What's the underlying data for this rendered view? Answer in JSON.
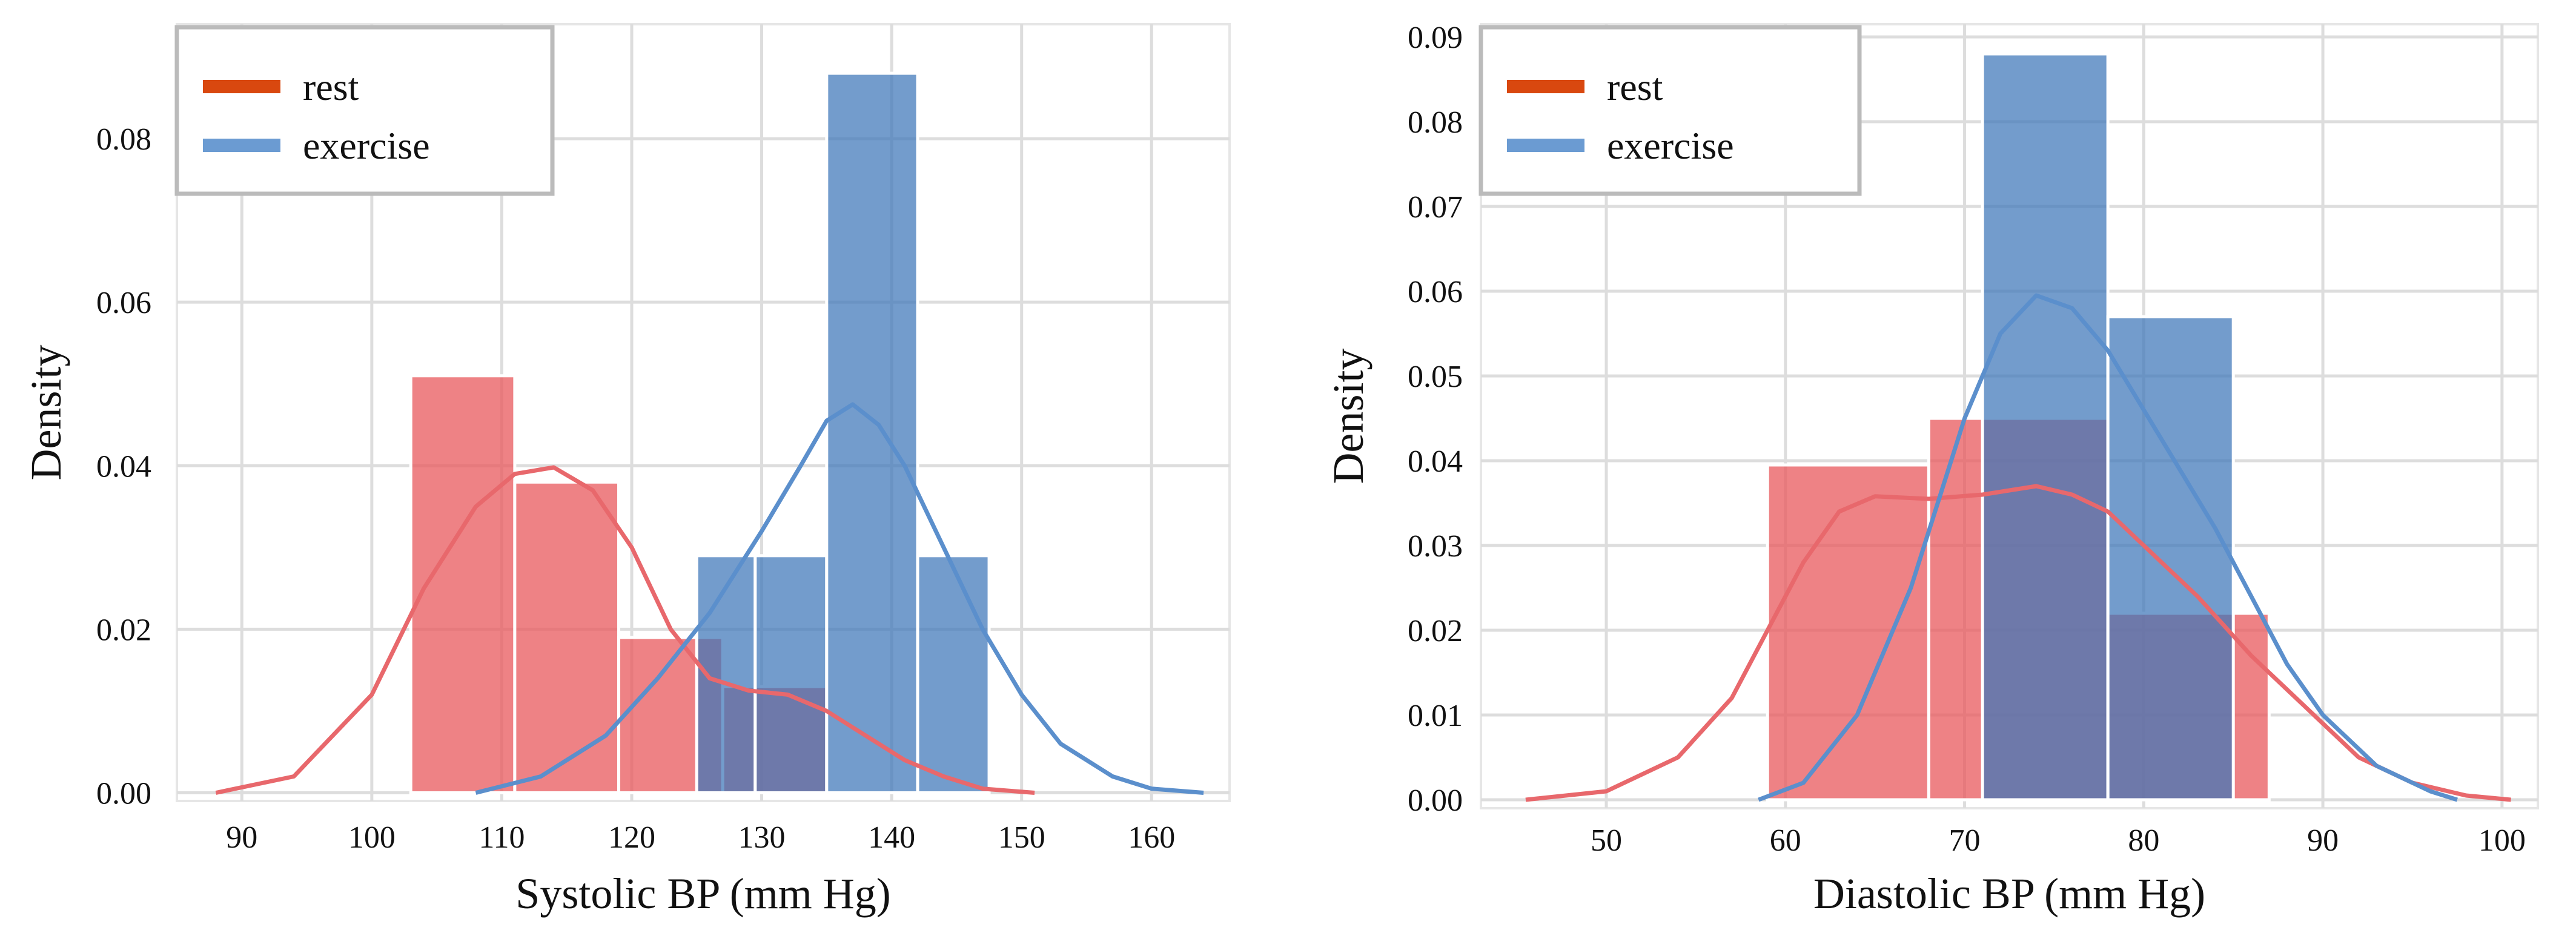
{
  "colors": {
    "rest_bar": "#e8585c",
    "rest_line": "#e8686c",
    "rest_swatch": "#d9480f",
    "exercise_bar": "#3d76b8",
    "exercise_line": "#5b8fcc",
    "exercise_swatch": "#6b9bd2",
    "grid": "#dddddd",
    "frame": "#e6e6e6",
    "legend_border": "#bbbbbb"
  },
  "chart_data": [
    {
      "type": "bar",
      "subtype": "histogram-with-kde",
      "title": "",
      "xlabel": "Systolic BP (mm Hg)",
      "ylabel": "Density",
      "xlim": [
        85,
        166
      ],
      "ylim": [
        -0.001,
        0.094
      ],
      "xticks": [
        90,
        100,
        110,
        120,
        130,
        140,
        150,
        160
      ],
      "yticks": [
        0.0,
        0.02,
        0.04,
        0.06,
        0.08
      ],
      "ytick_labels": [
        "0.00",
        "0.02",
        "0.04",
        "0.06",
        "0.08"
      ],
      "legend": {
        "position": "top-left",
        "entries": [
          "rest",
          "exercise"
        ]
      },
      "series": [
        {
          "name": "rest",
          "bins": [
            {
              "x0": 103,
              "x1": 111,
              "density": 0.051
            },
            {
              "x0": 111,
              "x1": 119,
              "density": 0.038
            },
            {
              "x0": 119,
              "x1": 127,
              "density": 0.019
            },
            {
              "x0": 127,
              "x1": 135,
              "density": 0.013
            }
          ],
          "kde": [
            [
              88,
              0.0
            ],
            [
              94,
              0.002
            ],
            [
              100,
              0.012
            ],
            [
              104,
              0.025
            ],
            [
              108,
              0.035
            ],
            [
              111,
              0.039
            ],
            [
              114,
              0.0398
            ],
            [
              117,
              0.037
            ],
            [
              120,
              0.03
            ],
            [
              123,
              0.02
            ],
            [
              126,
              0.014
            ],
            [
              129,
              0.0125
            ],
            [
              132,
              0.012
            ],
            [
              135,
              0.01
            ],
            [
              138,
              0.007
            ],
            [
              141,
              0.004
            ],
            [
              144,
              0.002
            ],
            [
              147,
              0.0005
            ],
            [
              151,
              0.0
            ]
          ]
        },
        {
          "name": "exercise",
          "bins": [
            {
              "x0": 125,
              "x1": 129.5,
              "density": 0.029
            },
            {
              "x0": 129.5,
              "x1": 135,
              "density": 0.029
            },
            {
              "x0": 135,
              "x1": 142,
              "density": 0.088
            },
            {
              "x0": 142,
              "x1": 147.5,
              "density": 0.029
            }
          ],
          "kde": [
            [
              108,
              0.0
            ],
            [
              113,
              0.002
            ],
            [
              118,
              0.007
            ],
            [
              122,
              0.014
            ],
            [
              126,
              0.022
            ],
            [
              130,
              0.032
            ],
            [
              133,
              0.04
            ],
            [
              135,
              0.0455
            ],
            [
              137,
              0.0475
            ],
            [
              139,
              0.045
            ],
            [
              141,
              0.04
            ],
            [
              144,
              0.03
            ],
            [
              147,
              0.02
            ],
            [
              150,
              0.012
            ],
            [
              153,
              0.006
            ],
            [
              157,
              0.002
            ],
            [
              160,
              0.0005
            ],
            [
              164,
              0.0
            ]
          ]
        }
      ]
    },
    {
      "type": "bar",
      "subtype": "histogram-with-kde",
      "title": "",
      "xlabel": "Diastolic BP (mm Hg)",
      "ylabel": "Density",
      "xlim": [
        43,
        102
      ],
      "ylim": [
        -0.001,
        0.0915
      ],
      "xticks": [
        50,
        60,
        70,
        80,
        90,
        100
      ],
      "yticks": [
        0.0,
        0.01,
        0.02,
        0.03,
        0.04,
        0.05,
        0.06,
        0.07,
        0.08,
        0.09
      ],
      "ytick_labels": [
        "0.00",
        "0.01",
        "0.02",
        "0.03",
        "0.04",
        "0.05",
        "0.06",
        "0.07",
        "0.08",
        "0.09"
      ],
      "legend": {
        "position": "top-left",
        "entries": [
          "rest",
          "exercise"
        ]
      },
      "series": [
        {
          "name": "rest",
          "bins": [
            {
              "x0": 59,
              "x1": 68,
              "density": 0.0395
            },
            {
              "x0": 68,
              "x1": 78,
              "density": 0.045
            },
            {
              "x0": 78,
              "x1": 87,
              "density": 0.022
            }
          ],
          "kde": [
            [
              45.5,
              0.0
            ],
            [
              50,
              0.001
            ],
            [
              54,
              0.005
            ],
            [
              57,
              0.012
            ],
            [
              59,
              0.02
            ],
            [
              61,
              0.028
            ],
            [
              63,
              0.034
            ],
            [
              65,
              0.0358
            ],
            [
              68,
              0.0355
            ],
            [
              71,
              0.036
            ],
            [
              74,
              0.037
            ],
            [
              76,
              0.036
            ],
            [
              78,
              0.034
            ],
            [
              80,
              0.03
            ],
            [
              83,
              0.024
            ],
            [
              86,
              0.017
            ],
            [
              89,
              0.011
            ],
            [
              92,
              0.005
            ],
            [
              95,
              0.002
            ],
            [
              98,
              0.0005
            ],
            [
              100.5,
              0.0
            ]
          ]
        },
        {
          "name": "exercise",
          "bins": [
            {
              "x0": 71,
              "x1": 78,
              "density": 0.088
            },
            {
              "x0": 78,
              "x1": 85,
              "density": 0.057
            }
          ],
          "kde": [
            [
              58.5,
              0.0
            ],
            [
              61,
              0.002
            ],
            [
              64,
              0.01
            ],
            [
              67,
              0.025
            ],
            [
              70,
              0.045
            ],
            [
              72,
              0.055
            ],
            [
              74,
              0.0595
            ],
            [
              76,
              0.058
            ],
            [
              78,
              0.053
            ],
            [
              80,
              0.046
            ],
            [
              82,
              0.039
            ],
            [
              84,
              0.032
            ],
            [
              86,
              0.024
            ],
            [
              88,
              0.016
            ],
            [
              90,
              0.01
            ],
            [
              93,
              0.004
            ],
            [
              96,
              0.001
            ],
            [
              97.5,
              0.0
            ]
          ]
        }
      ]
    }
  ]
}
